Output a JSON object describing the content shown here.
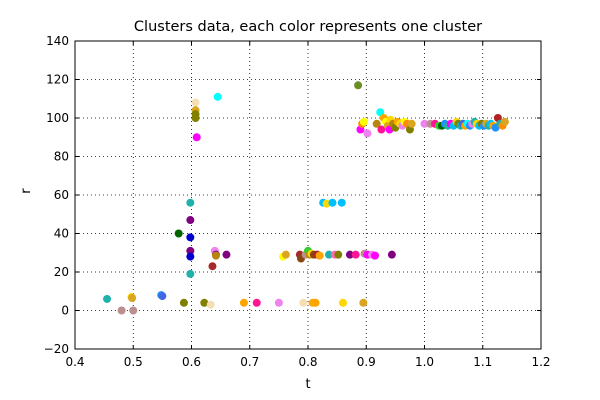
{
  "chart_data": {
    "type": "scatter",
    "title": "Clusters data, each color represents one cluster",
    "xlabel": "t",
    "ylabel": "r",
    "xlim": [
      0.4,
      1.2
    ],
    "ylim": [
      -20,
      140
    ],
    "xticks": [
      "0.4",
      "0.5",
      "0.6",
      "0.7",
      "0.8",
      "0.9",
      "1.0",
      "1.1",
      "1.2"
    ],
    "yticks": [
      "−20",
      "0",
      "20",
      "40",
      "60",
      "80",
      "100",
      "120",
      "140"
    ],
    "grid": true,
    "points": [
      {
        "x": 0.455,
        "y": 6,
        "color": "#20b2aa"
      },
      {
        "x": 0.48,
        "y": 0,
        "color": "#bc8f8f"
      },
      {
        "x": 0.497,
        "y": 7,
        "color": "#ffd700"
      },
      {
        "x": 0.498,
        "y": 6.5,
        "color": "#daa520"
      },
      {
        "x": 0.5,
        "y": 0,
        "color": "#bc8f8f"
      },
      {
        "x": 0.548,
        "y": 8,
        "color": "#1e90ff"
      },
      {
        "x": 0.55,
        "y": 7.5,
        "color": "#4169e1"
      },
      {
        "x": 0.578,
        "y": 40,
        "color": "#006400"
      },
      {
        "x": 0.587,
        "y": 4,
        "color": "#808000"
      },
      {
        "x": 0.598,
        "y": 56,
        "color": "#20b2aa"
      },
      {
        "x": 0.598,
        "y": 47,
        "color": "#800080"
      },
      {
        "x": 0.598,
        "y": 38,
        "color": "#0000cd"
      },
      {
        "x": 0.598,
        "y": 31,
        "color": "#800080"
      },
      {
        "x": 0.598,
        "y": 28,
        "color": "#0000cd"
      },
      {
        "x": 0.598,
        "y": 19,
        "color": "#20b2aa"
      },
      {
        "x": 0.607,
        "y": 108,
        "color": "#f5deb3"
      },
      {
        "x": 0.607,
        "y": 104,
        "color": "#daa520"
      },
      {
        "x": 0.607,
        "y": 102,
        "color": "#808000"
      },
      {
        "x": 0.607,
        "y": 100,
        "color": "#808000"
      },
      {
        "x": 0.609,
        "y": 90,
        "color": "#ff00ff"
      },
      {
        "x": 0.622,
        "y": 4,
        "color": "#808000"
      },
      {
        "x": 0.633,
        "y": 3,
        "color": "#f5deb3"
      },
      {
        "x": 0.636,
        "y": 23,
        "color": "#a52a2a"
      },
      {
        "x": 0.64,
        "y": 31,
        "color": "#ee82ee"
      },
      {
        "x": 0.642,
        "y": 29,
        "color": "#800080"
      },
      {
        "x": 0.642,
        "y": 28.5,
        "color": "#b8860b"
      },
      {
        "x": 0.645,
        "y": 111,
        "color": "#00ffff"
      },
      {
        "x": 0.66,
        "y": 29,
        "color": "#800080"
      },
      {
        "x": 0.69,
        "y": 4,
        "color": "#ffa500"
      },
      {
        "x": 0.712,
        "y": 4,
        "color": "#ff1493"
      },
      {
        "x": 0.75,
        "y": 4,
        "color": "#ee82ee"
      },
      {
        "x": 0.757,
        "y": 28,
        "color": "#ffff00"
      },
      {
        "x": 0.762,
        "y": 29,
        "color": "#daa520"
      },
      {
        "x": 0.786,
        "y": 29,
        "color": "#a52a2a"
      },
      {
        "x": 0.788,
        "y": 27,
        "color": "#8b4513"
      },
      {
        "x": 0.792,
        "y": 4,
        "color": "#f5deb3"
      },
      {
        "x": 0.796,
        "y": 29,
        "color": "#bc8f8f"
      },
      {
        "x": 0.8,
        "y": 31,
        "color": "#32cd32"
      },
      {
        "x": 0.803,
        "y": 29,
        "color": "#b8860b"
      },
      {
        "x": 0.806,
        "y": 29.5,
        "color": "#ffd700"
      },
      {
        "x": 0.808,
        "y": 4,
        "color": "#ffa500"
      },
      {
        "x": 0.81,
        "y": 29,
        "color": "#8b4513"
      },
      {
        "x": 0.813,
        "y": 4,
        "color": "#ffa500"
      },
      {
        "x": 0.816,
        "y": 29,
        "color": "#a52a2a"
      },
      {
        "x": 0.82,
        "y": 28.5,
        "color": "#ffa500"
      },
      {
        "x": 0.826,
        "y": 56,
        "color": "#00bfff"
      },
      {
        "x": 0.832,
        "y": 55.5,
        "color": "#ffd700"
      },
      {
        "x": 0.836,
        "y": 29,
        "color": "#20b2aa"
      },
      {
        "x": 0.842,
        "y": 56,
        "color": "#00bfff"
      },
      {
        "x": 0.846,
        "y": 29,
        "color": "#ff69b4"
      },
      {
        "x": 0.852,
        "y": 29,
        "color": "#808000"
      },
      {
        "x": 0.86,
        "y": 4,
        "color": "#ffd700"
      },
      {
        "x": 0.858,
        "y": 56,
        "color": "#00bfff"
      },
      {
        "x": 0.872,
        "y": 29,
        "color": "#800080"
      },
      {
        "x": 0.882,
        "y": 29,
        "color": "#ff1493"
      },
      {
        "x": 0.886,
        "y": 117,
        "color": "#6b8e23"
      },
      {
        "x": 0.89,
        "y": 94,
        "color": "#ff00ff"
      },
      {
        "x": 0.893,
        "y": 97,
        "color": "#ff8c00"
      },
      {
        "x": 0.895,
        "y": 4,
        "color": "#daa520"
      },
      {
        "x": 0.896,
        "y": 98,
        "color": "#ffff00"
      },
      {
        "x": 0.897,
        "y": 29.5,
        "color": "#bc8f8f"
      },
      {
        "x": 0.902,
        "y": 29,
        "color": "#ff00ff"
      },
      {
        "x": 0.902,
        "y": 92,
        "color": "#ee82ee"
      },
      {
        "x": 0.91,
        "y": 29,
        "color": "#ee82ee"
      },
      {
        "x": 0.915,
        "y": 28.5,
        "color": "#ff00ff"
      },
      {
        "x": 0.918,
        "y": 97,
        "color": "#b8860b"
      },
      {
        "x": 0.924,
        "y": 103,
        "color": "#00ffff"
      },
      {
        "x": 0.926,
        "y": 94,
        "color": "#ff1493"
      },
      {
        "x": 0.93,
        "y": 100,
        "color": "#ffa500"
      },
      {
        "x": 0.934,
        "y": 98,
        "color": "#ffff00"
      },
      {
        "x": 0.937,
        "y": 96,
        "color": "#daa520"
      },
      {
        "x": 0.94,
        "y": 94,
        "color": "#ff00ff"
      },
      {
        "x": 0.942,
        "y": 99,
        "color": "#ffd700"
      },
      {
        "x": 0.944,
        "y": 29,
        "color": "#800080"
      },
      {
        "x": 0.946,
        "y": 97,
        "color": "#b8860b"
      },
      {
        "x": 0.95,
        "y": 95,
        "color": "#808000"
      },
      {
        "x": 0.954,
        "y": 98,
        "color": "#ffa500"
      },
      {
        "x": 0.958,
        "y": 97,
        "color": "#ffd700"
      },
      {
        "x": 0.962,
        "y": 96,
        "color": "#ee82ee"
      },
      {
        "x": 0.966,
        "y": 98,
        "color": "#ffff00"
      },
      {
        "x": 0.97,
        "y": 97,
        "color": "#ff8c00"
      },
      {
        "x": 0.975,
        "y": 94,
        "color": "#808000"
      },
      {
        "x": 0.978,
        "y": 97,
        "color": "#daa520"
      },
      {
        "x": 1.0,
        "y": 97,
        "color": "#ee82ee"
      },
      {
        "x": 1.01,
        "y": 97,
        "color": "#bc8f8f"
      },
      {
        "x": 1.018,
        "y": 97,
        "color": "#ff1493"
      },
      {
        "x": 1.025,
        "y": 96,
        "color": "#32cd32"
      },
      {
        "x": 1.03,
        "y": 96,
        "color": "#006400"
      },
      {
        "x": 1.035,
        "y": 97,
        "color": "#1e90ff"
      },
      {
        "x": 1.04,
        "y": 96,
        "color": "#20b2aa"
      },
      {
        "x": 1.045,
        "y": 97,
        "color": "#ff00ff"
      },
      {
        "x": 1.05,
        "y": 96,
        "color": "#00bfff"
      },
      {
        "x": 1.055,
        "y": 98,
        "color": "#ffd700"
      },
      {
        "x": 1.058,
        "y": 97,
        "color": "#808000"
      },
      {
        "x": 1.062,
        "y": 96,
        "color": "#20b2aa"
      },
      {
        "x": 1.066,
        "y": 97,
        "color": "#4169e1"
      },
      {
        "x": 1.07,
        "y": 96,
        "color": "#ffa500"
      },
      {
        "x": 1.074,
        "y": 97,
        "color": "#00ffff"
      },
      {
        "x": 1.078,
        "y": 96,
        "color": "#1e90ff"
      },
      {
        "x": 1.082,
        "y": 97,
        "color": "#ee82ee"
      },
      {
        "x": 1.086,
        "y": 98,
        "color": "#20b2aa"
      },
      {
        "x": 1.09,
        "y": 97,
        "color": "#ffd700"
      },
      {
        "x": 1.094,
        "y": 96,
        "color": "#00bfff"
      },
      {
        "x": 1.098,
        "y": 97,
        "color": "#808000"
      },
      {
        "x": 1.102,
        "y": 96,
        "color": "#1e90ff"
      },
      {
        "x": 1.106,
        "y": 97,
        "color": "#daa520"
      },
      {
        "x": 1.11,
        "y": 96,
        "color": "#20b2aa"
      },
      {
        "x": 1.114,
        "y": 97,
        "color": "#00bfff"
      },
      {
        "x": 1.118,
        "y": 96,
        "color": "#ffa500"
      },
      {
        "x": 1.122,
        "y": 95,
        "color": "#1e90ff"
      },
      {
        "x": 1.126,
        "y": 100,
        "color": "#b22222"
      },
      {
        "x": 1.13,
        "y": 97,
        "color": "#20b2aa"
      },
      {
        "x": 1.134,
        "y": 96,
        "color": "#ff8c00"
      },
      {
        "x": 1.138,
        "y": 98,
        "color": "#daa520"
      }
    ]
  }
}
